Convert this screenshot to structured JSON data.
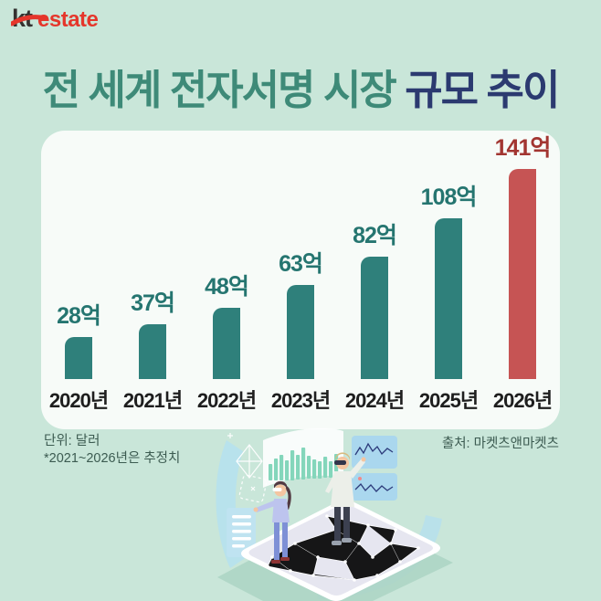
{
  "brand": {
    "kt": "kt",
    "estate": "estate"
  },
  "title": {
    "highlight": "전 세계 전자서명 시장",
    "rest": " 규모 추이"
  },
  "chart_data": {
    "type": "bar",
    "title": "전 세계 전자서명 시장 규모 추이",
    "categories": [
      "2020년",
      "2021년",
      "2022년",
      "2023년",
      "2024년",
      "2025년",
      "2026년"
    ],
    "values": [
      28,
      37,
      48,
      63,
      82,
      108,
      141
    ],
    "value_labels": [
      "28억",
      "37억",
      "48억",
      "63억",
      "82억",
      "108억",
      "141억"
    ],
    "unit_note": "단위: 달러",
    "estimate_note": "*2021~2026년은 추정치",
    "source": "출처: 마켓츠앤마켓츠",
    "ylim": [
      0,
      150
    ],
    "grid": false,
    "legend": "none",
    "highlight_index": 6,
    "bar_color": "#2f807b",
    "highlight_bar_color": "#c65454",
    "label_color": "#257570",
    "highlight_label_color": "#a23531"
  },
  "footnotes": {
    "unit": "단위: 달러",
    "estimate": "*2021~2026년은 추정치",
    "source": "출처: 마켓츠앤마켓츠"
  },
  "colors": {
    "background": "#c9e6d9",
    "card": "#f7fbf8",
    "title_green": "#3e8a78",
    "title_navy": "#2b3a70",
    "logo_red": "#e5362b"
  },
  "illustration": {
    "icons": [
      "hologram-bar-chart-icon",
      "line-chart-panel-icon",
      "smartphone-network-icon",
      "vr-person-icon"
    ]
  }
}
